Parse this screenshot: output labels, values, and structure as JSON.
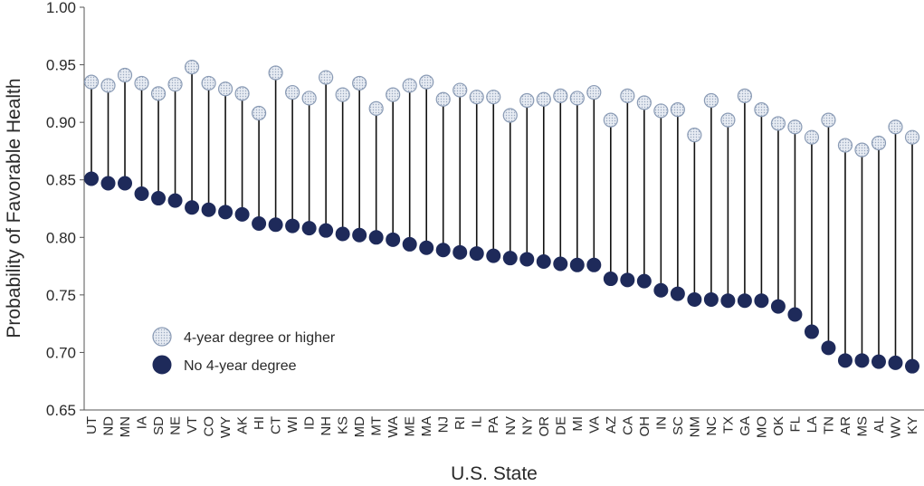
{
  "chart_data": {
    "type": "dumbbell",
    "xlabel": "U.S. State",
    "ylabel": "Probability of Favorable Health",
    "ylim": [
      0.65,
      1.0
    ],
    "yticks": [
      "0.65",
      "0.70",
      "0.75",
      "0.80",
      "0.85",
      "0.90",
      "0.95",
      "1.00"
    ],
    "grid": false,
    "legend_position": "bottom-left",
    "categories": [
      "UT",
      "ND",
      "MN",
      "IA",
      "SD",
      "NE",
      "VT",
      "CO",
      "WY",
      "AK",
      "HI",
      "CT",
      "WI",
      "ID",
      "NH",
      "KS",
      "MD",
      "MT",
      "WA",
      "ME",
      "MA",
      "NJ",
      "RI",
      "IL",
      "PA",
      "NV",
      "NY",
      "OR",
      "DE",
      "MI",
      "VA",
      "AZ",
      "CA",
      "OH",
      "IN",
      "SC",
      "NM",
      "NC",
      "TX",
      "GA",
      "MO",
      "OK",
      "FL",
      "LA",
      "TN",
      "AR",
      "MS",
      "AL",
      "WV",
      "KY"
    ],
    "series": [
      {
        "name": "4-year degree or higher",
        "color": "#dde4ee",
        "edge_color": "#8a9bb5",
        "values": [
          0.935,
          0.932,
          0.941,
          0.934,
          0.925,
          0.933,
          0.948,
          0.934,
          0.929,
          0.925,
          0.908,
          0.943,
          0.926,
          0.921,
          0.939,
          0.924,
          0.934,
          0.912,
          0.924,
          0.932,
          0.935,
          0.92,
          0.928,
          0.922,
          0.922,
          0.906,
          0.919,
          0.92,
          0.923,
          0.921,
          0.926,
          0.902,
          0.923,
          0.917,
          0.91,
          0.911,
          0.889,
          0.919,
          0.902,
          0.923,
          0.911,
          0.899,
          0.896,
          0.887,
          0.902,
          0.88,
          0.876,
          0.882,
          0.896,
          0.887
        ]
      },
      {
        "name": "No 4-year degree",
        "color": "#1e2a5a",
        "edge_color": "#1e2a5a",
        "values": [
          0.851,
          0.847,
          0.847,
          0.838,
          0.834,
          0.832,
          0.826,
          0.824,
          0.822,
          0.82,
          0.812,
          0.811,
          0.81,
          0.808,
          0.806,
          0.803,
          0.802,
          0.8,
          0.798,
          0.794,
          0.791,
          0.789,
          0.787,
          0.786,
          0.784,
          0.782,
          0.781,
          0.779,
          0.777,
          0.776,
          0.776,
          0.764,
          0.763,
          0.762,
          0.754,
          0.751,
          0.746,
          0.746,
          0.745,
          0.745,
          0.745,
          0.74,
          0.733,
          0.718,
          0.704,
          0.693,
          0.693,
          0.692,
          0.691,
          0.688
        ]
      }
    ]
  }
}
